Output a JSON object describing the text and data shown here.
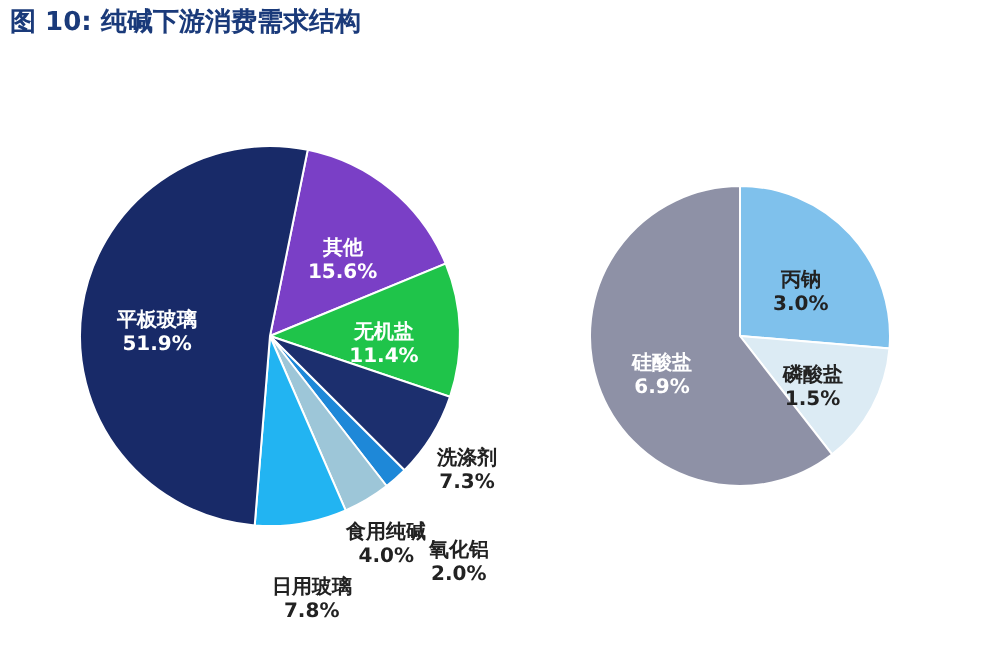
{
  "chart_data": [
    {
      "type": "pie",
      "title": "图 10:   纯碱下游消费需求结构",
      "categories": [
        "其他",
        "无机盐",
        "洗涤剂",
        "氧化铝",
        "食用纯碱",
        "日用玻璃",
        "平板玻璃"
      ],
      "values": [
        15.6,
        11.4,
        7.3,
        2.0,
        4.0,
        7.8,
        51.9
      ],
      "colors": [
        "#7a3fc6",
        "#1fc44a",
        "#1c2f6e",
        "#1e88d8",
        "#9dc6d8",
        "#22b4f2",
        "#182a68"
      ],
      "value_labels": [
        "15.6%",
        "11.4%",
        "7.3%",
        "2.0%",
        "4.0%",
        "7.8%",
        "51.9%"
      ]
    },
    {
      "type": "pie",
      "categories": [
        "丙钠",
        "磷酸盐",
        "硅酸盐"
      ],
      "values": [
        3.0,
        1.5,
        6.9
      ],
      "colors": [
        "#7fc1ec",
        "#dcebf4",
        "#8e91a6"
      ],
      "value_labels": [
        "3.0%",
        "1.5%",
        "6.9%"
      ]
    }
  ]
}
